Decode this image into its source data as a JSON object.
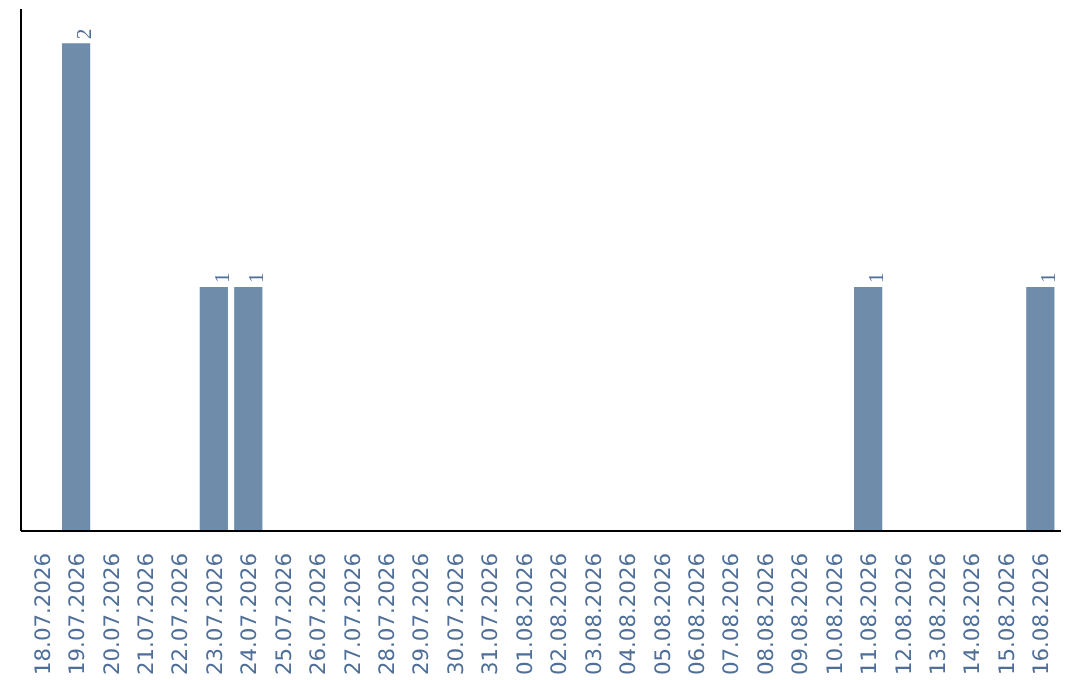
{
  "chart_data": {
    "type": "bar",
    "categories": [
      "18.07.2026",
      "19.07.2026",
      "20.07.2026",
      "21.07.2026",
      "22.07.2026",
      "23.07.2026",
      "24.07.2026",
      "25.07.2026",
      "26.07.2026",
      "27.07.2026",
      "28.07.2026",
      "29.07.2026",
      "30.07.2026",
      "31.07.2026",
      "01.08.2026",
      "02.08.2026",
      "03.08.2026",
      "04.08.2026",
      "05.08.2026",
      "06.08.2026",
      "07.08.2026",
      "08.08.2026",
      "09.08.2026",
      "10.08.2026",
      "11.08.2026",
      "12.08.2026",
      "13.08.2026",
      "14.08.2026",
      "15.08.2026",
      "16.08.2026"
    ],
    "values": [
      0,
      2,
      0,
      0,
      0,
      1,
      1,
      0,
      0,
      0,
      0,
      0,
      0,
      0,
      0,
      0,
      0,
      0,
      0,
      0,
      0,
      0,
      0,
      0,
      1,
      0,
      0,
      0,
      0,
      1
    ],
    "value_labels": [
      null,
      "2",
      null,
      null,
      null,
      "1",
      "1",
      null,
      null,
      null,
      null,
      null,
      null,
      null,
      null,
      null,
      null,
      null,
      null,
      null,
      null,
      null,
      null,
      null,
      "1",
      null,
      null,
      null,
      null,
      "1"
    ],
    "color": "#6f8dab",
    "tick_labels": "x",
    "grid": false
  }
}
